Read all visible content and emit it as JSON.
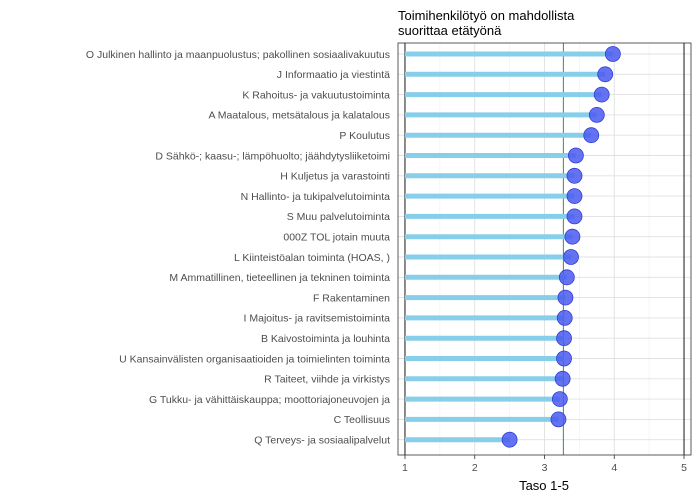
{
  "chart_data": {
    "type": "lollipop",
    "orientation": "horizontal",
    "title": [
      "Toimihenkilötyö on mahdollista",
      "suorittaa etätyönä"
    ],
    "xlabel": "Taso 1-5",
    "ylabel": "",
    "xlim": [
      0.9,
      5.1
    ],
    "xticks": [
      1,
      2,
      3,
      4,
      5
    ],
    "reference_lines": [
      {
        "x": 1,
        "color": "#000000"
      },
      {
        "x": 3.27,
        "color": "#2e7d32"
      },
      {
        "x": 5,
        "color": "#000000"
      }
    ],
    "grid": true,
    "legend": "none",
    "colors": {
      "stem": "#87ceeb",
      "point": "#4a5af0",
      "point_edge": "#2f3fd6",
      "grid_major": "#e0e0e0",
      "grid_minor": "#f0f0f0",
      "panel_border": "#333333"
    },
    "categories": [
      "O Julkinen hallinto ja maanpuolustus; pakollinen sosiaalivakuutus",
      "J Informaatio ja viestintä",
      "K Rahoitus- ja vakuutustoiminta",
      "A Maatalous, metsätalous ja kalatalous",
      "P Koulutus",
      "D Sähkö-; kaasu-; lämpöhuolto; jäähdytysliiketoimi",
      "H Kuljetus ja varastointi",
      "N Hallinto- ja tukipalvelutoiminta",
      "S Muu palvelutoiminta",
      "000Z TOL jotain muuta",
      "L Kiinteistöalan toiminta (HOAS, )",
      "M Ammatillinen, tieteellinen ja tekninen toiminta",
      "F Rakentaminen",
      "I Majoitus- ja ravitsemistoiminta",
      "B Kaivostoiminta ja louhinta",
      "U Kansainvälisten organisaatioiden ja toimielinten toiminta",
      "R Taiteet, viihde ja virkistys",
      "G Tukku- ja vähittäiskauppa; moottoriajoneuvojen ja",
      "C Teollisuus",
      "Q Terveys- ja sosiaalipalvelut"
    ],
    "values": [
      3.98,
      3.87,
      3.82,
      3.75,
      3.67,
      3.45,
      3.43,
      3.43,
      3.43,
      3.4,
      3.38,
      3.32,
      3.3,
      3.29,
      3.28,
      3.28,
      3.26,
      3.22,
      3.2,
      2.5
    ]
  }
}
